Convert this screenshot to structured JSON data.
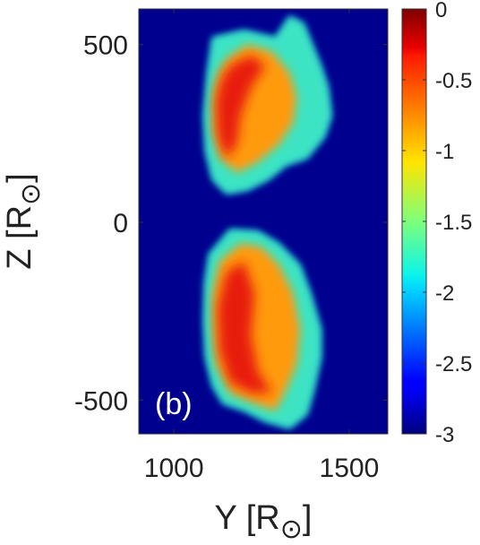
{
  "chart_data": {
    "type": "heatmap",
    "panel_label": "(b)",
    "xlabel": {
      "main": "Y [R",
      "sub": "⊙",
      "close": "]"
    },
    "ylabel": {
      "main": "Z [R",
      "sub": "⊙",
      "close": "]"
    },
    "xlim": [
      900,
      1610
    ],
    "ylim": [
      -595,
      600
    ],
    "x_ticks": [
      1000,
      1500
    ],
    "x_tick_labels": [
      "1000",
      "1500"
    ],
    "y_ticks": [
      500,
      0,
      -500
    ],
    "y_tick_labels": [
      "500",
      "0",
      "-500"
    ],
    "colorbar": {
      "colormap": "jet",
      "range": [
        -3,
        0
      ],
      "ticks": [
        0,
        -0.5,
        -1,
        -1.5,
        -2,
        -2.5,
        -3
      ],
      "tick_labels": [
        "0",
        "-0.5",
        "-1",
        "-1.5",
        "-2",
        "-2.5",
        "-3"
      ]
    },
    "background_value": -3,
    "structures": [
      {
        "name": "upper-lobe",
        "envelope": [
          [
            1110,
            520
          ],
          [
            1200,
            540
          ],
          [
            1290,
            520
          ],
          [
            1330,
            580
          ],
          [
            1370,
            560
          ],
          [
            1395,
            500
          ],
          [
            1420,
            440
          ],
          [
            1440,
            380
          ],
          [
            1450,
            300
          ],
          [
            1430,
            240
          ],
          [
            1380,
            180
          ],
          [
            1320,
            160
          ],
          [
            1270,
            120
          ],
          [
            1210,
            90
          ],
          [
            1150,
            80
          ],
          [
            1110,
            120
          ],
          [
            1090,
            200
          ],
          [
            1085,
            300
          ],
          [
            1095,
            420
          ]
        ],
        "body": [
          [
            1150,
            460
          ],
          [
            1210,
            500
          ],
          [
            1280,
            480
          ],
          [
            1330,
            420
          ],
          [
            1350,
            350
          ],
          [
            1340,
            280
          ],
          [
            1300,
            220
          ],
          [
            1240,
            170
          ],
          [
            1180,
            140
          ],
          [
            1130,
            180
          ],
          [
            1110,
            260
          ],
          [
            1110,
            360
          ],
          [
            1125,
            420
          ]
        ],
        "core": [
          [
            1160,
            440
          ],
          [
            1220,
            470
          ],
          [
            1260,
            440
          ],
          [
            1220,
            380
          ],
          [
            1190,
            300
          ],
          [
            1180,
            220
          ],
          [
            1150,
            180
          ],
          [
            1125,
            240
          ],
          [
            1120,
            340
          ],
          [
            1135,
            400
          ]
        ]
      },
      {
        "name": "lower-lobe",
        "envelope": [
          [
            1100,
            -90
          ],
          [
            1160,
            -20
          ],
          [
            1240,
            -25
          ],
          [
            1300,
            -60
          ],
          [
            1360,
            -120
          ],
          [
            1390,
            -200
          ],
          [
            1420,
            -300
          ],
          [
            1420,
            -380
          ],
          [
            1400,
            -470
          ],
          [
            1380,
            -540
          ],
          [
            1330,
            -580
          ],
          [
            1260,
            -560
          ],
          [
            1200,
            -530
          ],
          [
            1140,
            -510
          ],
          [
            1110,
            -460
          ],
          [
            1090,
            -380
          ],
          [
            1085,
            -280
          ],
          [
            1088,
            -170
          ]
        ],
        "body": [
          [
            1130,
            -110
          ],
          [
            1190,
            -60
          ],
          [
            1250,
            -70
          ],
          [
            1300,
            -120
          ],
          [
            1340,
            -200
          ],
          [
            1360,
            -300
          ],
          [
            1350,
            -400
          ],
          [
            1320,
            -470
          ],
          [
            1290,
            -530
          ],
          [
            1230,
            -510
          ],
          [
            1160,
            -480
          ],
          [
            1120,
            -400
          ],
          [
            1110,
            -300
          ],
          [
            1110,
            -200
          ]
        ],
        "core": [
          [
            1150,
            -140
          ],
          [
            1200,
            -110
          ],
          [
            1230,
            -200
          ],
          [
            1220,
            -320
          ],
          [
            1240,
            -420
          ],
          [
            1280,
            -480
          ],
          [
            1220,
            -480
          ],
          [
            1160,
            -450
          ],
          [
            1130,
            -360
          ],
          [
            1125,
            -240
          ]
        ]
      }
    ]
  }
}
